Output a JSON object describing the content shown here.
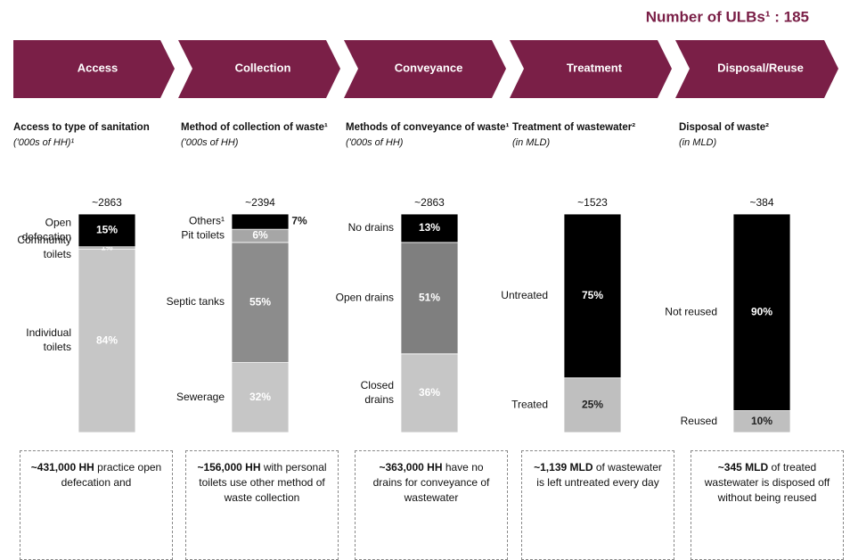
{
  "header": {
    "title": "Number of ULBs¹ : 185"
  },
  "steps": [
    "Access",
    "Collection",
    "Conveyance",
    "Treatment",
    "Disposal/Reuse"
  ],
  "chart_data": [
    {
      "type": "stacked_bar",
      "title": "Access to type of sanitation",
      "subtitle": "('000s of HH)¹",
      "total_label": "~2863",
      "ylim": [
        0,
        100
      ],
      "series": [
        {
          "name": "Individual toilets",
          "color": "#c6c6c6",
          "values": [
            84
          ],
          "value_labels": [
            "84%"
          ]
        },
        {
          "name": "Community toilets",
          "color": "#a6a6a6",
          "values": [
            1
          ],
          "value_labels": [
            "1%"
          ]
        },
        {
          "name": "Open defecation",
          "color": "#000000",
          "values": [
            15
          ],
          "value_labels": [
            "15%"
          ]
        }
      ]
    },
    {
      "type": "stacked_bar",
      "title": "Method of collection of waste¹",
      "subtitle": "('000s of HH)",
      "total_label": "~2394",
      "ylim": [
        0,
        100
      ],
      "series": [
        {
          "name": "Sewerage",
          "color": "#c6c6c6",
          "values": [
            32
          ],
          "value_labels": [
            "32%"
          ]
        },
        {
          "name": "Septic tanks",
          "color": "#8c8c8c",
          "values": [
            55
          ],
          "value_labels": [
            "55%"
          ]
        },
        {
          "name": "Pit toilets",
          "color": "#a6a6a6",
          "values": [
            6
          ],
          "value_labels": [
            "6%"
          ]
        },
        {
          "name": "Others¹",
          "color": "#000000",
          "values": [
            7
          ],
          "value_labels": [
            "7%"
          ]
        }
      ]
    },
    {
      "type": "stacked_bar",
      "title": "Methods of conveyance of waste¹",
      "subtitle": "('000s of HH)",
      "total_label": "~2863",
      "ylim": [
        0,
        100
      ],
      "series": [
        {
          "name": "Closed drains",
          "color": "#c6c6c6",
          "values": [
            36
          ],
          "value_labels": [
            "36%"
          ]
        },
        {
          "name": "Open drains",
          "color": "#7f7f7f",
          "values": [
            51
          ],
          "value_labels": [
            "51%"
          ]
        },
        {
          "name": "No drains",
          "color": "#000000",
          "values": [
            13
          ],
          "value_labels": [
            "13%"
          ]
        }
      ]
    },
    {
      "type": "stacked_bar",
      "title": "Treatment of wastewater²",
      "subtitle": "(in MLD)",
      "total_label": "~1523",
      "ylim": [
        0,
        100
      ],
      "series": [
        {
          "name": "Treated",
          "color": "#bfbfbf",
          "values": [
            25
          ],
          "value_labels": [
            "25%"
          ]
        },
        {
          "name": "Untreated",
          "color": "#000000",
          "values": [
            75
          ],
          "value_labels": [
            "75%"
          ]
        }
      ]
    },
    {
      "type": "stacked_bar",
      "title": "Disposal of waste²",
      "subtitle": "(in MLD)",
      "total_label": "~384",
      "ylim": [
        0,
        100
      ],
      "series": [
        {
          "name": "Reused",
          "color": "#bfbfbf",
          "values": [
            10
          ],
          "value_labels": [
            "10%"
          ]
        },
        {
          "name": "Not reused",
          "color": "#000000",
          "values": [
            90
          ],
          "value_labels": [
            "90%"
          ]
        }
      ]
    }
  ],
  "notes": [
    {
      "bold": "~431,000 HH",
      "text": " practice open defecation and"
    },
    {
      "bold": "~156,000 HH",
      "text": " with personal toilets use other method of waste collection"
    },
    {
      "bold": "~363,000 HH",
      "text": " have no drains for conveyance of wastewater"
    },
    {
      "bold": "~1,139 MLD",
      "text": " of wastewater is left untreated every day"
    },
    {
      "bold": "~345 MLD",
      "text": " of treated wastewater is disposed off without being reused"
    }
  ]
}
